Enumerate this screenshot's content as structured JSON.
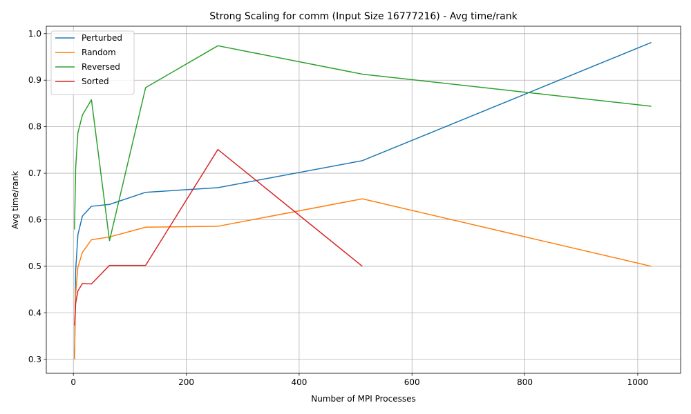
{
  "chart_data": {
    "type": "line",
    "title": "Strong Scaling for comm (Input Size 16777216) - Avg time/rank",
    "xlabel": "Number of MPI Processes",
    "ylabel": "Avg time/rank",
    "xlim": [
      -48,
      1076
    ],
    "ylim": [
      0.27,
      1.016
    ],
    "xticks": [
      0,
      200,
      400,
      600,
      800,
      1000
    ],
    "yticks": [
      0.3,
      0.4,
      0.5,
      0.6,
      0.7,
      0.8,
      0.9,
      1.0
    ],
    "grid": true,
    "legend_position": "top-left",
    "series": [
      {
        "name": "Perturbed",
        "color": "#1f77b4",
        "x": [
          2,
          4,
          8,
          16,
          32,
          64,
          128,
          256,
          512,
          1024
        ],
        "y": [
          0.302,
          0.49,
          0.568,
          0.608,
          0.629,
          0.633,
          0.659,
          0.669,
          0.727,
          0.981
        ]
      },
      {
        "name": "Random",
        "color": "#ff7f0e",
        "x": [
          2,
          4,
          8,
          16,
          32,
          64,
          128,
          256,
          512,
          1024
        ],
        "y": [
          0.3,
          0.44,
          0.498,
          0.53,
          0.557,
          0.563,
          0.584,
          0.586,
          0.645,
          0.5
        ]
      },
      {
        "name": "Reversed",
        "color": "#2ca02c",
        "x": [
          2,
          4,
          8,
          16,
          32,
          64,
          128,
          256,
          512,
          1024
        ],
        "y": [
          0.579,
          0.711,
          0.787,
          0.825,
          0.858,
          0.555,
          0.884,
          0.974,
          0.913,
          0.844
        ]
      },
      {
        "name": "Sorted",
        "color": "#d62728",
        "x": [
          2,
          4,
          8,
          16,
          32,
          64,
          128,
          256,
          512
        ],
        "y": [
          0.373,
          0.42,
          0.447,
          0.463,
          0.462,
          0.502,
          0.502,
          0.751,
          0.5
        ]
      }
    ]
  }
}
